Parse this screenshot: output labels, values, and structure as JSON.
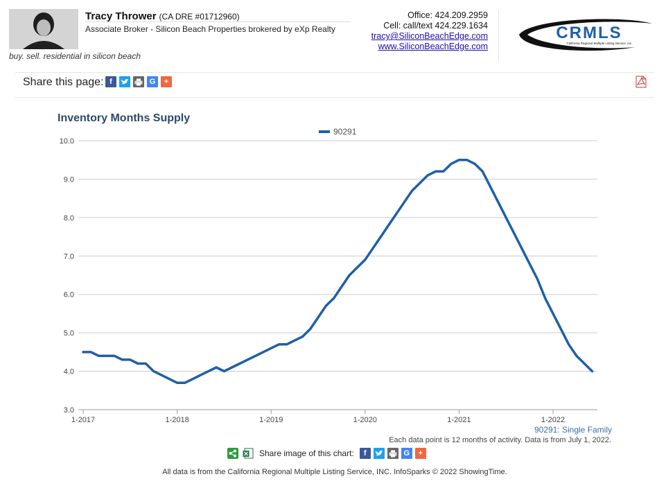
{
  "agent": {
    "name": "Tracy Thrower",
    "dre": "(CA DRE #01712960)",
    "title": "Associate Broker - Silicon Beach Properties brokered by eXp Realty",
    "tagline": "buy. sell. residential in silicon beach"
  },
  "contact": {
    "office": "Office: 424.209.2959",
    "cell": "Cell: call/text 424.229.1634",
    "email": "tracy@SiliconBeachEdge.com",
    "website": "www.SiliconBeachEdge.com"
  },
  "logo": {
    "text": "CRMLS",
    "subtext": "California Regional Multiple Listing Service, Inc."
  },
  "share": {
    "label": "Share this page:",
    "icons": [
      "facebook-icon",
      "twitter-icon",
      "print-icon",
      "google-icon",
      "plus-icon"
    ],
    "image_label": "Share image of this chart:"
  },
  "colors": {
    "series": "#1f5fa6",
    "title": "#2b4a6b",
    "facebook": "#3b5998",
    "twitter": "#1da1f2",
    "print": "#666666",
    "google": "#4285f4",
    "plus": "#f4663e"
  },
  "chart_data": {
    "type": "line",
    "title": "Inventory Months Supply",
    "xlabel": "",
    "ylabel": "",
    "ylim": [
      3.0,
      10.0
    ],
    "yticks": [
      "3.0",
      "4.0",
      "5.0",
      "6.0",
      "7.0",
      "8.0",
      "9.0",
      "10.0"
    ],
    "xticks": [
      "1-2017",
      "1-2018",
      "1-2019",
      "1-2020",
      "1-2021",
      "1-2022"
    ],
    "grid": true,
    "legend": "top-center",
    "x": [
      "1-2017",
      "2-2017",
      "3-2017",
      "4-2017",
      "5-2017",
      "6-2017",
      "7-2017",
      "8-2017",
      "9-2017",
      "10-2017",
      "11-2017",
      "12-2017",
      "1-2018",
      "2-2018",
      "3-2018",
      "4-2018",
      "5-2018",
      "6-2018",
      "7-2018",
      "8-2018",
      "9-2018",
      "10-2018",
      "11-2018",
      "12-2018",
      "1-2019",
      "2-2019",
      "3-2019",
      "4-2019",
      "5-2019",
      "6-2019",
      "7-2019",
      "8-2019",
      "9-2019",
      "10-2019",
      "11-2019",
      "12-2019",
      "1-2020",
      "2-2020",
      "3-2020",
      "4-2020",
      "5-2020",
      "6-2020",
      "7-2020",
      "8-2020",
      "9-2020",
      "10-2020",
      "11-2020",
      "12-2020",
      "1-2021",
      "2-2021",
      "3-2021",
      "4-2021",
      "5-2021",
      "6-2021",
      "7-2021",
      "8-2021",
      "9-2021",
      "10-2021",
      "11-2021",
      "12-2021",
      "1-2022",
      "2-2022",
      "3-2022",
      "4-2022",
      "5-2022",
      "6-2022"
    ],
    "series": [
      {
        "name": "90291",
        "values": [
          4.5,
          4.5,
          4.4,
          4.4,
          4.4,
          4.3,
          4.3,
          4.2,
          4.2,
          4.0,
          3.9,
          3.8,
          3.7,
          3.7,
          3.8,
          3.9,
          4.0,
          4.1,
          4.0,
          4.1,
          4.2,
          4.3,
          4.4,
          4.5,
          4.6,
          4.7,
          4.7,
          4.8,
          4.9,
          5.1,
          5.4,
          5.7,
          5.9,
          6.2,
          6.5,
          6.7,
          6.9,
          7.2,
          7.5,
          7.8,
          8.1,
          8.4,
          8.7,
          8.9,
          9.1,
          9.2,
          9.2,
          9.4,
          9.5,
          9.5,
          9.4,
          9.2,
          8.8,
          8.4,
          8.0,
          7.6,
          7.2,
          6.8,
          6.4,
          5.9,
          5.5,
          5.1,
          4.7,
          4.4,
          4.2,
          4.0
        ]
      }
    ],
    "series_note": "90291: Single Family",
    "activity_note": "Each data point is 12 months of activity. Data is from July 1, 2022."
  },
  "footer": "All data is from the California Regional Multiple Listing Service, INC. InfoSparks © 2022 ShowingTime."
}
